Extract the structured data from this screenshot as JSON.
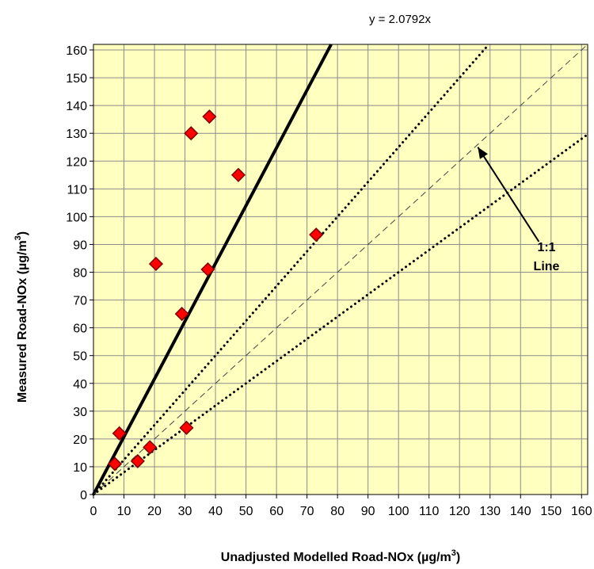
{
  "chart_data": {
    "type": "scatter",
    "title": "",
    "equation": "y = 2.0792x",
    "xlabel": "Unadjusted Modelled Road-NOx (µg/m",
    "xlabel_sup": "3",
    "xlabel_end": ")",
    "ylabel": "Measured Road-NOx (µg/m",
    "ylabel_sup": "3",
    "ylabel_end": ")",
    "xlim": [
      0,
      162
    ],
    "ylim": [
      0,
      162
    ],
    "xticks": [
      0,
      10,
      20,
      30,
      40,
      50,
      60,
      70,
      80,
      90,
      100,
      110,
      120,
      130,
      140,
      150,
      160
    ],
    "yticks": [
      0,
      10,
      20,
      30,
      40,
      50,
      60,
      70,
      80,
      90,
      100,
      110,
      120,
      130,
      140,
      150,
      160
    ],
    "grid": true,
    "colors": {
      "plot_background": "#FFFFC0",
      "grid": "#8C8C8C",
      "marker_fill": "#FF0000",
      "marker_stroke": "#7F0000",
      "line": "#000000"
    },
    "points": [
      {
        "x": 7,
        "y": 11
      },
      {
        "x": 8.5,
        "y": 22
      },
      {
        "x": 14.5,
        "y": 12
      },
      {
        "x": 18.5,
        "y": 17
      },
      {
        "x": 20.5,
        "y": 83
      },
      {
        "x": 29,
        "y": 65
      },
      {
        "x": 30.5,
        "y": 24
      },
      {
        "x": 32,
        "y": 130
      },
      {
        "x": 37.5,
        "y": 81
      },
      {
        "x": 38,
        "y": 136
      },
      {
        "x": 47.5,
        "y": 115
      },
      {
        "x": 73,
        "y": 93.5
      }
    ],
    "lines": [
      {
        "slope": 2.0792,
        "style": "solid"
      },
      {
        "slope": 1.25,
        "style": "dotted"
      },
      {
        "slope": 1,
        "style": "dashed"
      },
      {
        "slope": 0.8,
        "style": "dotted"
      }
    ],
    "annotation": {
      "line1": "1:1",
      "line2": "Line",
      "arrow_from": [
        146,
        91
      ],
      "arrow_to": [
        126,
        125
      ]
    }
  }
}
